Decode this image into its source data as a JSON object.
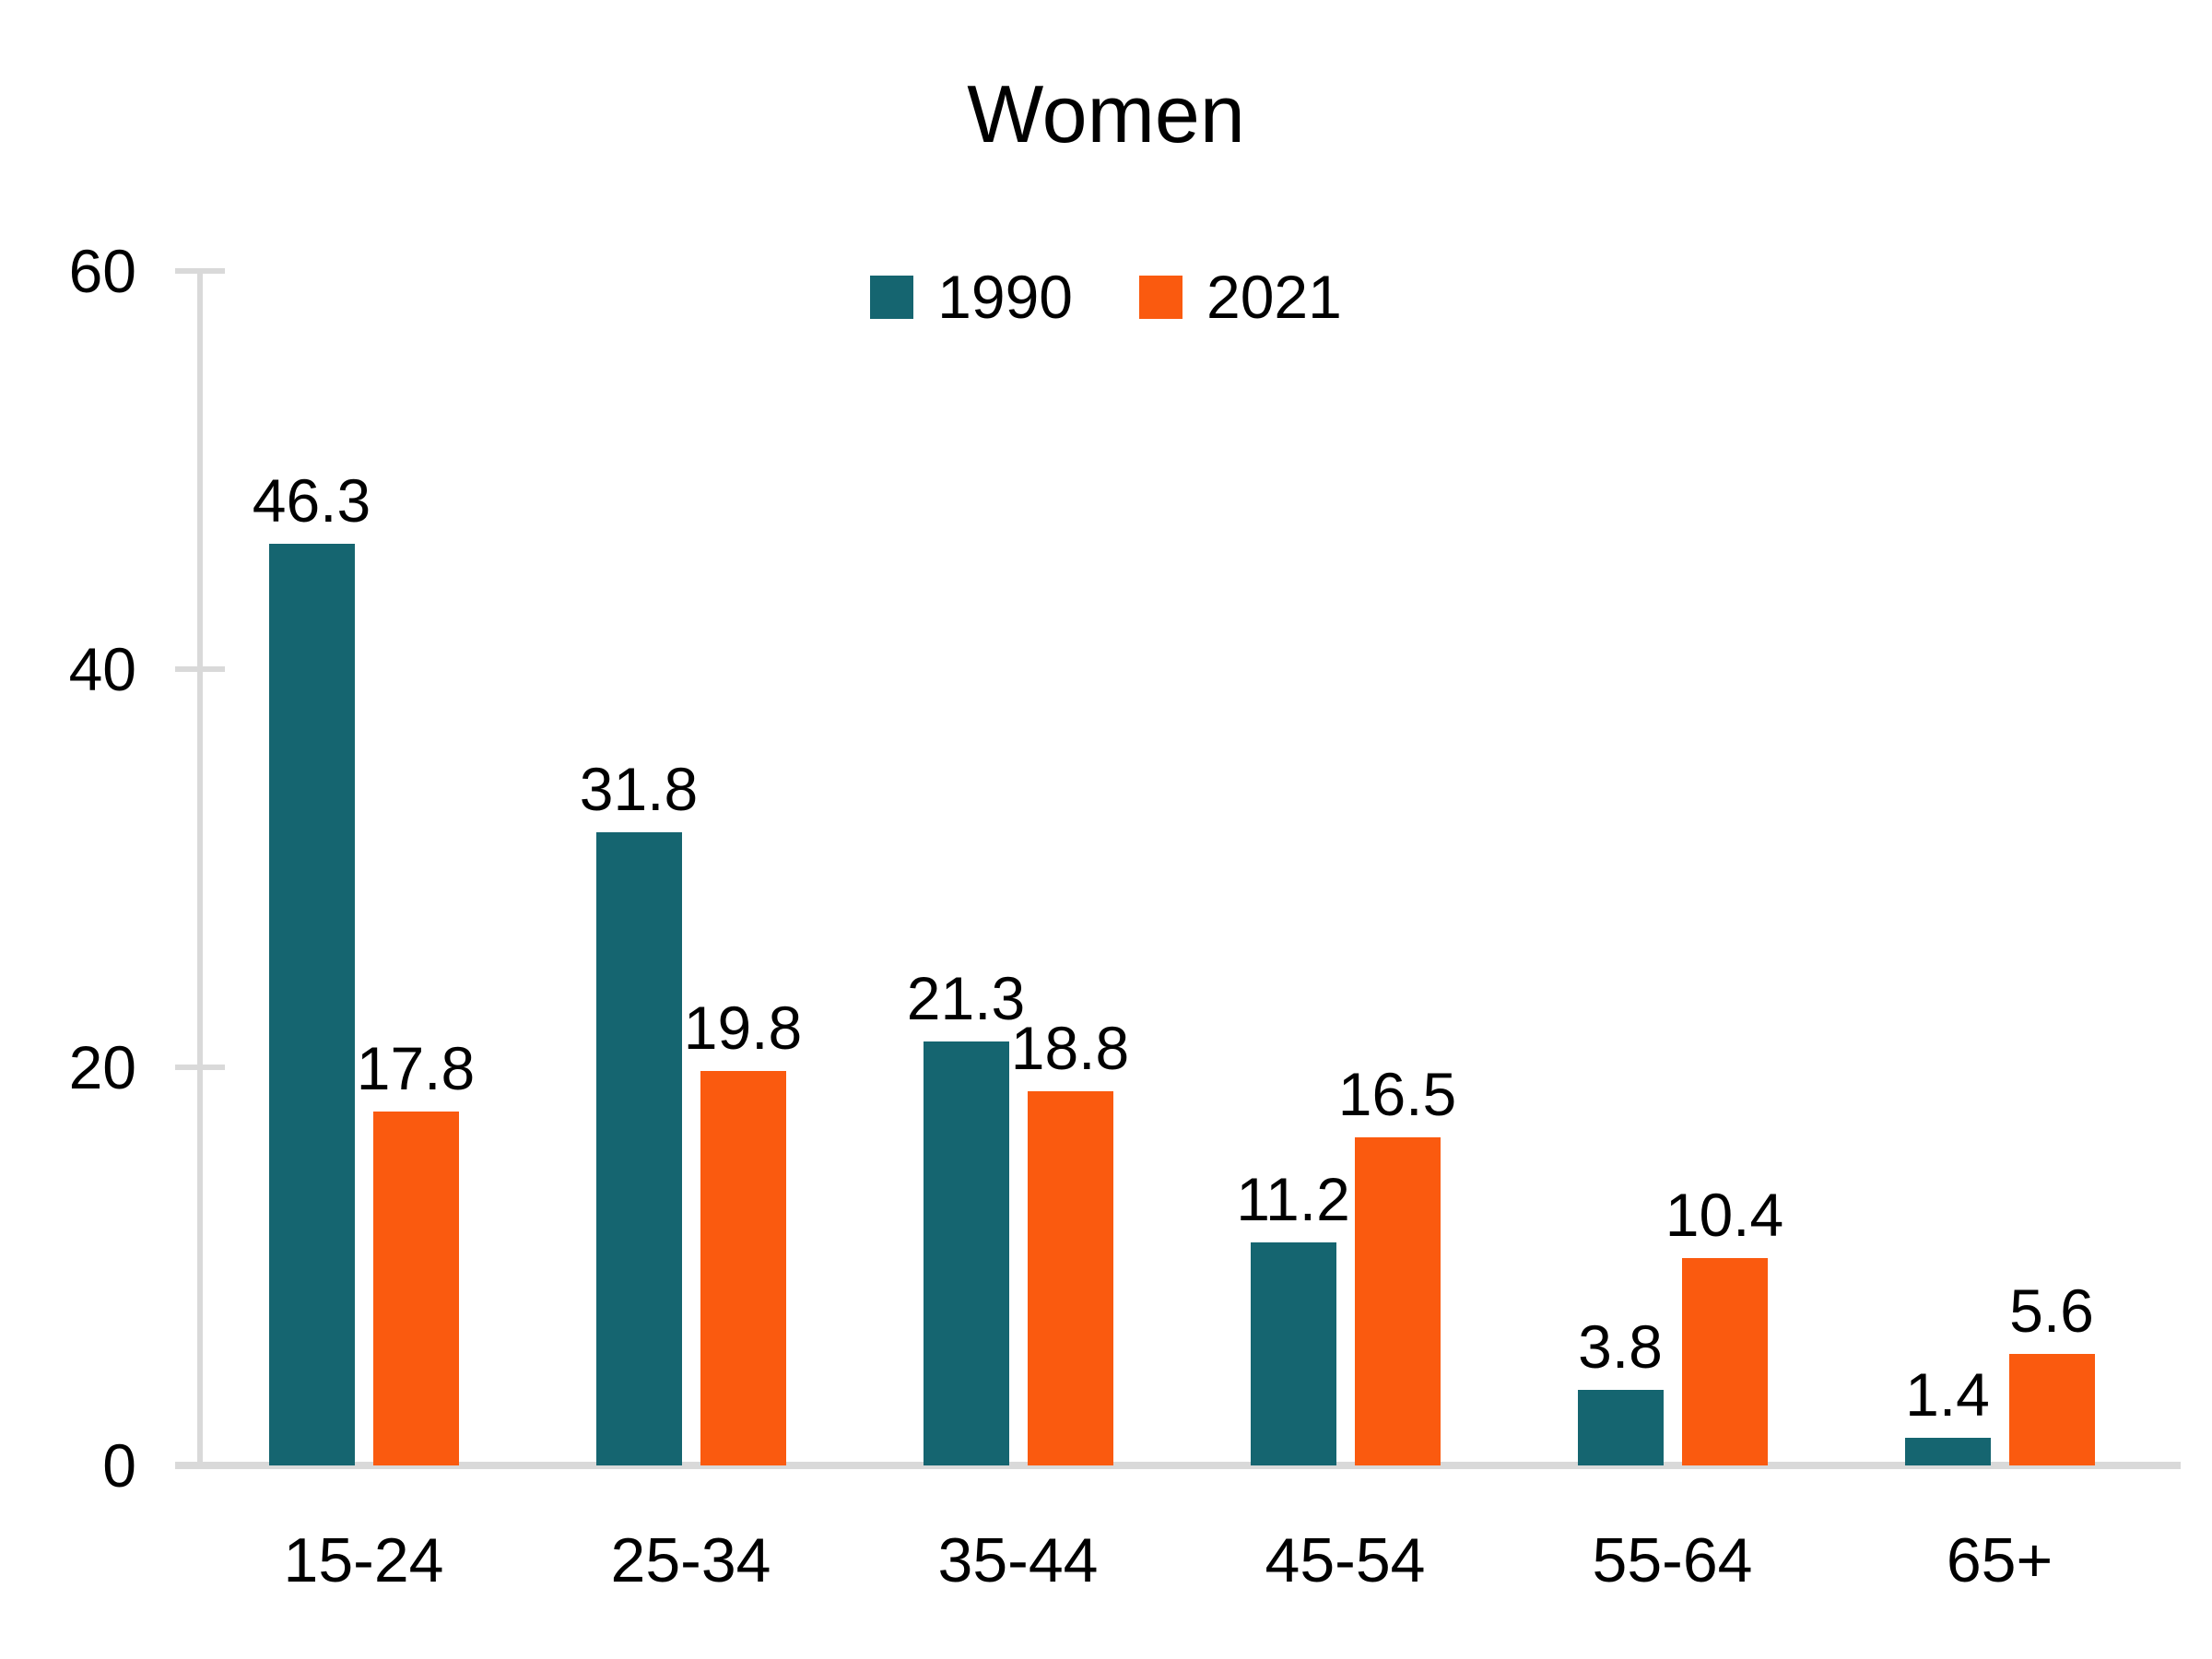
{
  "title": "Women",
  "legend": {
    "items": [
      {
        "label": "1990",
        "color": "#156570"
      },
      {
        "label": "2021",
        "color": "#FA5A0F"
      }
    ]
  },
  "chart_data": {
    "type": "bar",
    "title": "Women",
    "categories": [
      "15-24",
      "25-34",
      "35-44",
      "45-54",
      "55-64",
      "65+"
    ],
    "series": [
      {
        "name": "1990",
        "color": "#156570",
        "values": [
          46.3,
          31.8,
          21.3,
          11.2,
          3.8,
          1.4
        ]
      },
      {
        "name": "2021",
        "color": "#FA5A0F",
        "values": [
          17.8,
          19.8,
          18.8,
          16.5,
          10.4,
          5.6
        ]
      }
    ],
    "xlabel": "",
    "ylabel": "",
    "ylim": [
      0,
      60
    ],
    "yticks": [
      0,
      20,
      40,
      60
    ],
    "grid": false,
    "data_labels": true,
    "data_label_decimals": 1,
    "legend_position": "top-center",
    "axis_color": "#d9d9d9",
    "text_color": "#000000",
    "background_color": "#ffffff"
  }
}
